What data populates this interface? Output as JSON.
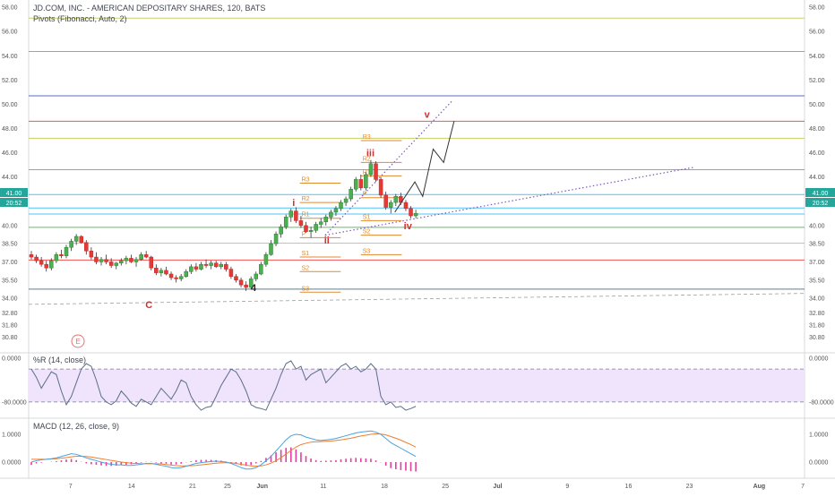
{
  "chart_data": {
    "type": "candlestick",
    "title": "JD.COM, INC. - AMERICAN DEPOSITARY SHARES, 120, BATS",
    "indicator_label": "Pivots (Fibonacci, Auto, 2)",
    "price_axis": {
      "range": [
        29.5,
        58.6
      ],
      "ticks": [
        "58.00",
        "56.00",
        "54.00",
        "52.00",
        "50.00",
        "48.00",
        "46.00",
        "44.00",
        "42.00",
        "40.00",
        "38.50",
        "37.00",
        "35.50",
        "34.00",
        "32.80",
        "31.80",
        "30.80"
      ],
      "current_price": "41.00",
      "timer": "20:52",
      "badge_color": "#26a69a"
    },
    "x_axis": {
      "ticks": [
        {
          "label": "7",
          "x": 0.0
        },
        {
          "label": "14",
          "x": 7.0
        },
        {
          "label": "21",
          "x": 14.0
        },
        {
          "label": "25",
          "x": 18.0
        },
        {
          "label": "Jun",
          "x": 22.0
        },
        {
          "label": "11",
          "x": 29.0
        },
        {
          "label": "18",
          "x": 36.0
        },
        {
          "label": "25",
          "x": 43.0
        },
        {
          "label": "Jul",
          "x": 49.0
        },
        {
          "label": "9",
          "x": 57.0
        },
        {
          "label": "16",
          "x": 64.0
        },
        {
          "label": "23",
          "x": 71.0
        },
        {
          "label": "Aug",
          "x": 79.0
        },
        {
          "label": "7",
          "x": 84.0
        }
      ],
      "range": [
        -4.8,
        84.2
      ]
    },
    "horizontal_levels": [
      {
        "price": 57.1,
        "color": "#c8d060"
      },
      {
        "price": 54.35,
        "color": "#4cc9b0"
      },
      {
        "price": 50.7,
        "color": "#5c6bc0"
      },
      {
        "price": 48.6,
        "color": "#ef5350"
      },
      {
        "price": 47.2,
        "color": "#c8d060"
      },
      {
        "price": 44.6,
        "color": "#90a4ae"
      },
      {
        "price": 42.55,
        "color": "#4fc3f7"
      },
      {
        "price": 41.45,
        "color": "#4fc3f7"
      },
      {
        "price": 40.95,
        "color": "#4fc3f7"
      },
      {
        "price": 39.85,
        "color": "#66bb6a"
      },
      {
        "price": 38.55,
        "color": "#c8d060"
      },
      {
        "price": 37.15,
        "color": "#ef5350"
      },
      {
        "price": 34.75,
        "color": "#607d8b"
      }
    ],
    "pivot_sets": [
      {
        "x0": 26.3,
        "x1": 31.0,
        "levels": [
          {
            "label": "R3",
            "price": 43.5
          },
          {
            "label": "R2",
            "price": 41.9
          },
          {
            "label": "R1",
            "price": 40.6
          },
          {
            "label": "P",
            "price": 39.0
          },
          {
            "label": "S1",
            "price": 37.4
          },
          {
            "label": "S2",
            "price": 36.2
          },
          {
            "label": "S3",
            "price": 34.5
          }
        ]
      },
      {
        "x0": 33.3,
        "x1": 38.0,
        "levels": [
          {
            "label": "R3",
            "price": 47.0
          },
          {
            "label": "R2",
            "price": 45.2
          },
          {
            "label": "R1",
            "price": 44.1
          },
          {
            "label": "P",
            "price": 42.3
          },
          {
            "label": "S1",
            "price": 40.4
          },
          {
            "label": "S2",
            "price": 39.2
          },
          {
            "label": "S3",
            "price": 37.6
          }
        ]
      }
    ],
    "candles": [
      {
        "o": 37.6,
        "h": 37.9,
        "l": 37.2,
        "c": 37.4
      },
      {
        "o": 37.4,
        "h": 37.6,
        "l": 36.9,
        "c": 37.1
      },
      {
        "o": 37.1,
        "h": 37.4,
        "l": 36.6,
        "c": 36.8
      },
      {
        "o": 36.8,
        "h": 37.1,
        "l": 36.2,
        "c": 36.5
      },
      {
        "o": 36.5,
        "h": 37.3,
        "l": 36.3,
        "c": 37.1
      },
      {
        "o": 37.1,
        "h": 37.8,
        "l": 36.9,
        "c": 37.6
      },
      {
        "o": 37.6,
        "h": 38.0,
        "l": 37.3,
        "c": 37.5
      },
      {
        "o": 37.5,
        "h": 38.4,
        "l": 37.3,
        "c": 38.2
      },
      {
        "o": 38.2,
        "h": 38.9,
        "l": 37.9,
        "c": 38.7
      },
      {
        "o": 38.7,
        "h": 39.3,
        "l": 38.4,
        "c": 39.1
      },
      {
        "o": 39.1,
        "h": 39.2,
        "l": 38.5,
        "c": 38.6
      },
      {
        "o": 38.6,
        "h": 38.8,
        "l": 37.6,
        "c": 37.9
      },
      {
        "o": 37.9,
        "h": 38.2,
        "l": 37.2,
        "c": 37.4
      },
      {
        "o": 37.4,
        "h": 37.8,
        "l": 36.8,
        "c": 37.0
      },
      {
        "o": 37.0,
        "h": 37.4,
        "l": 36.7,
        "c": 37.2
      },
      {
        "o": 37.2,
        "h": 37.6,
        "l": 36.8,
        "c": 37.0
      },
      {
        "o": 37.0,
        "h": 37.3,
        "l": 36.5,
        "c": 36.7
      },
      {
        "o": 36.7,
        "h": 37.0,
        "l": 36.4,
        "c": 36.9
      },
      {
        "o": 36.9,
        "h": 37.3,
        "l": 36.7,
        "c": 37.1
      },
      {
        "o": 37.1,
        "h": 37.5,
        "l": 36.8,
        "c": 37.3
      },
      {
        "o": 37.3,
        "h": 37.6,
        "l": 36.9,
        "c": 37.0
      },
      {
        "o": 37.0,
        "h": 37.4,
        "l": 36.6,
        "c": 37.2
      },
      {
        "o": 37.2,
        "h": 37.8,
        "l": 37.1,
        "c": 37.6
      },
      {
        "o": 37.6,
        "h": 37.9,
        "l": 37.3,
        "c": 37.4
      },
      {
        "o": 37.4,
        "h": 37.5,
        "l": 36.3,
        "c": 36.5
      },
      {
        "o": 36.5,
        "h": 36.8,
        "l": 35.9,
        "c": 36.1
      },
      {
        "o": 36.1,
        "h": 36.5,
        "l": 35.8,
        "c": 36.3
      },
      {
        "o": 36.3,
        "h": 36.6,
        "l": 35.9,
        "c": 36.0
      },
      {
        "o": 36.0,
        "h": 36.2,
        "l": 35.5,
        "c": 35.7
      },
      {
        "o": 35.7,
        "h": 35.9,
        "l": 35.3,
        "c": 35.6
      },
      {
        "o": 35.6,
        "h": 36.0,
        "l": 35.4,
        "c": 35.8
      },
      {
        "o": 35.8,
        "h": 36.4,
        "l": 35.7,
        "c": 36.2
      },
      {
        "o": 36.2,
        "h": 36.8,
        "l": 36.0,
        "c": 36.6
      },
      {
        "o": 36.6,
        "h": 36.9,
        "l": 36.2,
        "c": 36.4
      },
      {
        "o": 36.4,
        "h": 37.0,
        "l": 36.3,
        "c": 36.8
      },
      {
        "o": 36.8,
        "h": 37.2,
        "l": 36.5,
        "c": 36.7
      },
      {
        "o": 36.7,
        "h": 37.1,
        "l": 36.4,
        "c": 36.9
      },
      {
        "o": 36.9,
        "h": 37.1,
        "l": 36.5,
        "c": 36.6
      },
      {
        "o": 36.6,
        "h": 37.0,
        "l": 36.4,
        "c": 36.8
      },
      {
        "o": 36.8,
        "h": 37.0,
        "l": 36.2,
        "c": 36.4
      },
      {
        "o": 36.4,
        "h": 36.6,
        "l": 35.6,
        "c": 35.8
      },
      {
        "o": 35.8,
        "h": 36.0,
        "l": 35.3,
        "c": 35.5
      },
      {
        "o": 35.5,
        "h": 35.7,
        "l": 34.9,
        "c": 35.1
      },
      {
        "o": 35.1,
        "h": 35.4,
        "l": 34.6,
        "c": 34.9
      },
      {
        "o": 34.9,
        "h": 35.8,
        "l": 34.8,
        "c": 35.6
      },
      {
        "o": 35.6,
        "h": 36.2,
        "l": 35.4,
        "c": 36.0
      },
      {
        "o": 36.0,
        "h": 37.0,
        "l": 35.9,
        "c": 36.8
      },
      {
        "o": 36.8,
        "h": 37.8,
        "l": 36.6,
        "c": 37.6
      },
      {
        "o": 37.6,
        "h": 38.8,
        "l": 37.5,
        "c": 38.5
      },
      {
        "o": 38.5,
        "h": 39.5,
        "l": 38.3,
        "c": 39.3
      },
      {
        "o": 39.3,
        "h": 40.1,
        "l": 39.0,
        "c": 39.9
      },
      {
        "o": 39.9,
        "h": 40.9,
        "l": 39.7,
        "c": 40.7
      },
      {
        "o": 40.7,
        "h": 41.4,
        "l": 40.3,
        "c": 41.2
      },
      {
        "o": 41.2,
        "h": 41.5,
        "l": 40.2,
        "c": 40.4
      },
      {
        "o": 40.4,
        "h": 40.8,
        "l": 39.8,
        "c": 40.0
      },
      {
        "o": 40.0,
        "h": 40.3,
        "l": 39.4,
        "c": 39.5
      },
      {
        "o": 39.5,
        "h": 39.9,
        "l": 39.0,
        "c": 39.6
      },
      {
        "o": 39.6,
        "h": 40.3,
        "l": 39.4,
        "c": 40.1
      },
      {
        "o": 40.1,
        "h": 40.6,
        "l": 39.8,
        "c": 40.3
      },
      {
        "o": 40.3,
        "h": 40.9,
        "l": 40.0,
        "c": 40.7
      },
      {
        "o": 40.7,
        "h": 41.3,
        "l": 40.4,
        "c": 41.1
      },
      {
        "o": 41.1,
        "h": 41.6,
        "l": 40.8,
        "c": 41.4
      },
      {
        "o": 41.4,
        "h": 42.1,
        "l": 41.2,
        "c": 41.9
      },
      {
        "o": 41.9,
        "h": 42.4,
        "l": 41.6,
        "c": 42.2
      },
      {
        "o": 42.2,
        "h": 43.2,
        "l": 42.0,
        "c": 43.0
      },
      {
        "o": 43.0,
        "h": 44.0,
        "l": 42.8,
        "c": 43.8
      },
      {
        "o": 43.8,
        "h": 44.2,
        "l": 42.9,
        "c": 43.1
      },
      {
        "o": 43.1,
        "h": 44.4,
        "l": 42.9,
        "c": 44.2
      },
      {
        "o": 44.2,
        "h": 45.4,
        "l": 44.0,
        "c": 45.1
      },
      {
        "o": 45.1,
        "h": 45.3,
        "l": 43.6,
        "c": 43.8
      },
      {
        "o": 43.8,
        "h": 44.0,
        "l": 42.3,
        "c": 42.5
      },
      {
        "o": 42.5,
        "h": 42.8,
        "l": 41.3,
        "c": 41.5
      },
      {
        "o": 41.5,
        "h": 42.1,
        "l": 41.0,
        "c": 41.9
      },
      {
        "o": 41.9,
        "h": 42.6,
        "l": 41.6,
        "c": 42.4
      },
      {
        "o": 42.4,
        "h": 42.7,
        "l": 41.7,
        "c": 41.9
      },
      {
        "o": 41.9,
        "h": 42.1,
        "l": 41.2,
        "c": 41.4
      },
      {
        "o": 41.4,
        "h": 41.6,
        "l": 40.6,
        "c": 40.8
      },
      {
        "o": 40.8,
        "h": 41.3,
        "l": 40.6,
        "c": 41.0
      }
    ],
    "wave_labels": [
      {
        "text": "C",
        "x": 9.0,
        "price": 33.2,
        "color": "#d32f2f"
      },
      {
        "text": "4",
        "x": 21.0,
        "price": 34.6,
        "color": "#222222"
      },
      {
        "text": "i",
        "x": 25.6,
        "price": 41.6,
        "color": "#d32f2f"
      },
      {
        "text": "ii",
        "x": 29.4,
        "price": 38.5,
        "color": "#d32f2f"
      },
      {
        "text": "iii",
        "x": 34.4,
        "price": 45.7,
        "color": "#d32f2f"
      },
      {
        "text": "iv",
        "x": 38.7,
        "price": 39.7,
        "color": "#d32f2f"
      },
      {
        "text": "v",
        "x": 40.9,
        "price": 48.9,
        "color": "#d32f2f"
      }
    ],
    "projection": [
      [
        37.2,
        41.1
      ],
      [
        39.5,
        43.6
      ],
      [
        40.4,
        42.4
      ],
      [
        41.6,
        46.3
      ],
      [
        42.8,
        45.2
      ],
      [
        44.0,
        48.6
      ]
    ],
    "trendlines": [
      {
        "from": [
          29.2,
          39.2
        ],
        "to": [
          43.8,
          50.3
        ],
        "color": "#7e57c2",
        "style": "dotted"
      },
      {
        "from": [
          29.2,
          39.2
        ],
        "to": [
          71.5,
          44.8
        ],
        "color": "#7e57c2",
        "style": "dotted"
      },
      {
        "from": [
          -4.8,
          33.5
        ],
        "to": [
          84.2,
          34.4
        ],
        "color": "#9e9e9e",
        "style": "dashed"
      }
    ],
    "events_marker": "E",
    "williams_r": {
      "label": "%R (14, close)",
      "ticks": [
        "0.0000",
        "-80.0000"
      ],
      "range": [
        -108,
        8
      ],
      "upper_band": -20,
      "lower_band": -80,
      "values": [
        -20,
        -35,
        -55,
        -40,
        -25,
        -30,
        -60,
        -85,
        -70,
        -45,
        -20,
        -10,
        -15,
        -40,
        -70,
        -80,
        -85,
        -78,
        -60,
        -70,
        -82,
        -88,
        -75,
        -80,
        -85,
        -70,
        -55,
        -65,
        -75,
        -60,
        -40,
        -45,
        -70,
        -85,
        -95,
        -90,
        -88,
        -70,
        -50,
        -35,
        -20,
        -25,
        -40,
        -60,
        -85,
        -90,
        -92,
        -95,
        -75,
        -55,
        -30,
        -10,
        -5,
        -20,
        -15,
        -40,
        -30,
        -25,
        -20,
        -45,
        -35,
        -25,
        -15,
        -10,
        -20,
        -15,
        -25,
        -20,
        -10,
        -20,
        -70,
        -85,
        -80,
        -90,
        -88,
        -95,
        -92,
        -88
      ]
    },
    "macd": {
      "label": "MACD (12, 26, close, 9)",
      "ticks": [
        "1.0000",
        "0.0000"
      ],
      "range": [
        -0.55,
        1.55
      ],
      "macd_line": [
        0.0,
        0.05,
        0.08,
        0.1,
        0.12,
        0.15,
        0.2,
        0.25,
        0.3,
        0.28,
        0.22,
        0.15,
        0.1,
        0.05,
        0.0,
        -0.05,
        -0.08,
        -0.1,
        -0.1,
        -0.12,
        -0.12,
        -0.1,
        -0.08,
        -0.05,
        -0.05,
        -0.08,
        -0.12,
        -0.15,
        -0.2,
        -0.22,
        -0.2,
        -0.15,
        -0.1,
        -0.05,
        -0.02,
        0.0,
        0.02,
        0.03,
        0.02,
        0.0,
        -0.05,
        -0.12,
        -0.2,
        -0.25,
        -0.25,
        -0.2,
        -0.1,
        0.05,
        0.2,
        0.4,
        0.6,
        0.8,
        0.95,
        1.0,
        0.98,
        0.9,
        0.85,
        0.8,
        0.78,
        0.8,
        0.82,
        0.85,
        0.9,
        0.95,
        1.0,
        1.05,
        1.08,
        1.1,
        1.12,
        1.08,
        1.0,
        0.85,
        0.7,
        0.6,
        0.5,
        0.4,
        0.3,
        0.2
      ],
      "signal_line": [
        0.1,
        0.1,
        0.1,
        0.1,
        0.11,
        0.12,
        0.14,
        0.16,
        0.19,
        0.21,
        0.21,
        0.2,
        0.18,
        0.15,
        0.12,
        0.09,
        0.06,
        0.03,
        0.0,
        -0.02,
        -0.04,
        -0.05,
        -0.06,
        -0.06,
        -0.06,
        -0.06,
        -0.07,
        -0.09,
        -0.11,
        -0.13,
        -0.14,
        -0.14,
        -0.13,
        -0.12,
        -0.1,
        -0.08,
        -0.06,
        -0.04,
        -0.03,
        -0.02,
        -0.03,
        -0.05,
        -0.08,
        -0.11,
        -0.14,
        -0.15,
        -0.14,
        -0.1,
        -0.04,
        0.05,
        0.16,
        0.29,
        0.42,
        0.54,
        0.63,
        0.68,
        0.72,
        0.73,
        0.74,
        0.75,
        0.76,
        0.78,
        0.8,
        0.83,
        0.86,
        0.9,
        0.94,
        0.97,
        1.0,
        1.02,
        1.01,
        0.98,
        0.92,
        0.86,
        0.79,
        0.71,
        0.63,
        0.54
      ],
      "histogram": [
        -0.1,
        -0.05,
        -0.02,
        0.0,
        0.01,
        0.03,
        0.06,
        0.09,
        0.11,
        0.07,
        0.01,
        -0.05,
        -0.08,
        -0.1,
        -0.12,
        -0.14,
        -0.14,
        -0.13,
        -0.1,
        -0.1,
        -0.08,
        -0.05,
        -0.02,
        0.01,
        0.01,
        -0.02,
        -0.05,
        -0.06,
        -0.09,
        -0.09,
        -0.06,
        -0.01,
        0.03,
        0.07,
        0.08,
        0.08,
        0.08,
        0.07,
        0.05,
        0.02,
        -0.02,
        -0.07,
        -0.12,
        -0.14,
        -0.11,
        -0.05,
        0.04,
        0.15,
        0.24,
        0.35,
        0.44,
        0.51,
        0.53,
        0.46,
        0.35,
        0.22,
        0.13,
        0.07,
        0.04,
        0.05,
        0.06,
        0.07,
        0.1,
        0.12,
        0.14,
        0.15,
        0.14,
        0.13,
        0.12,
        0.06,
        -0.01,
        -0.13,
        -0.22,
        -0.26,
        -0.29,
        -0.31,
        -0.33,
        -0.34
      ]
    },
    "colors": {
      "up": "#26a69a",
      "down": "#ef5350",
      "pivot": "#e08a30",
      "wr_line": "#5d6d8a",
      "wr_fill": "#efe4fb",
      "macd": "#4aa3df",
      "signal": "#f07e2c",
      "hist": "#e040a0"
    }
  }
}
